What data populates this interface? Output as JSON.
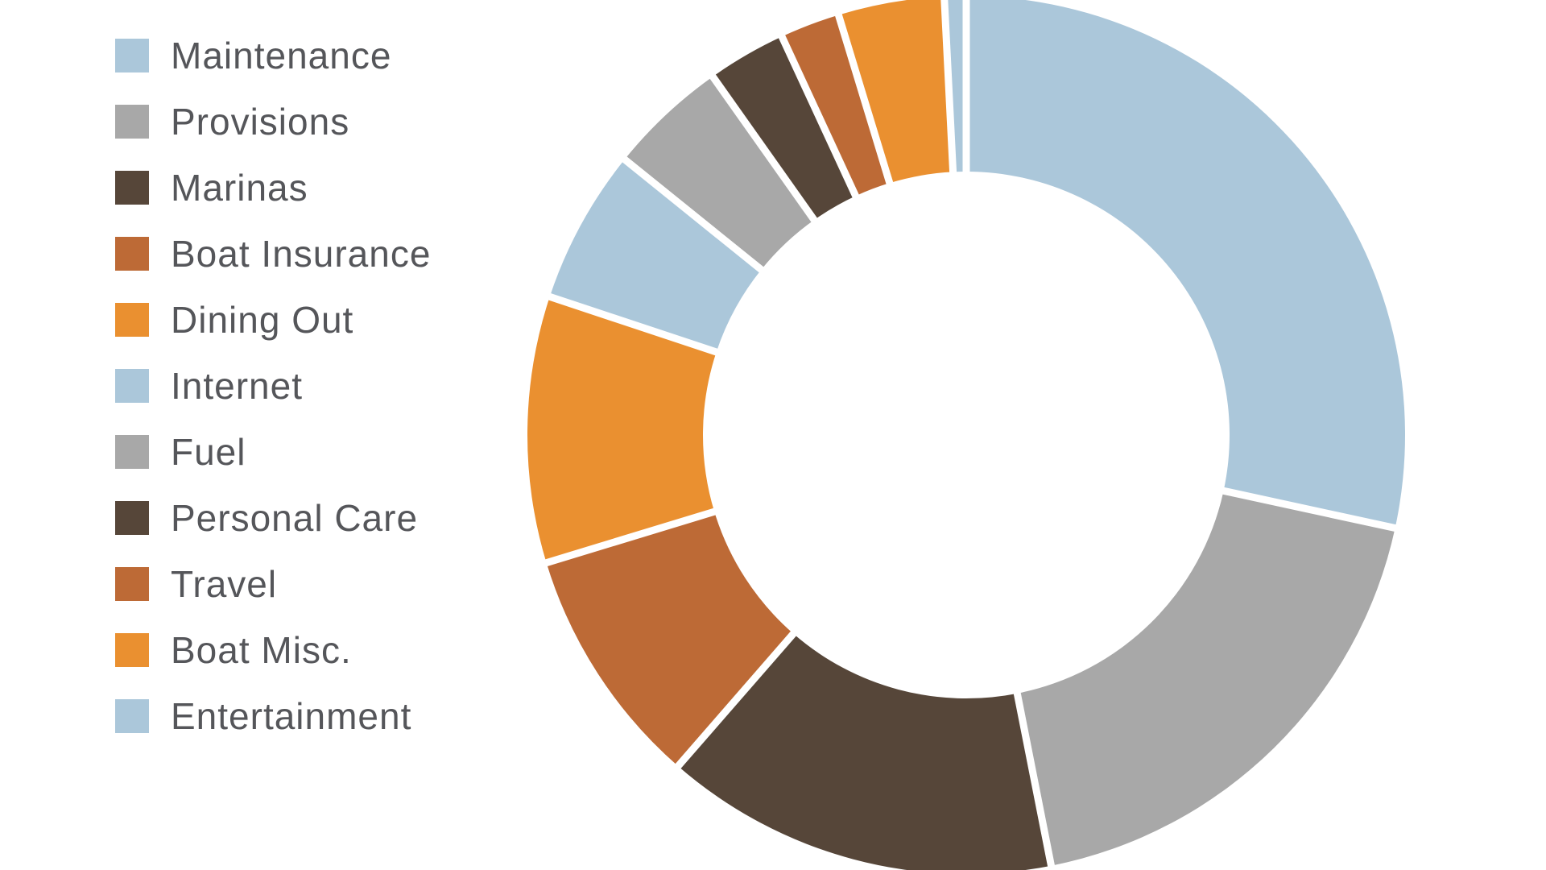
{
  "page": {
    "background_color": "#ffffff"
  },
  "chart_data": {
    "type": "pie",
    "subtype": "donut",
    "title": "",
    "categories": [
      "Maintenance",
      "Provisions",
      "Marinas",
      "Boat Insurance",
      "Dining Out",
      "Internet",
      "Fuel",
      "Personal Care",
      "Travel",
      "Boat Misc.",
      "Entertainment"
    ],
    "values": [
      28.4,
      18.5,
      14.5,
      8.9,
      9.8,
      5.7,
      4.4,
      2.9,
      2.2,
      3.9,
      0.8
    ],
    "unit": "percent_of_total",
    "colors": [
      "#abc7da",
      "#a8a8a8",
      "#564639",
      "#bd6a36",
      "#ea9030",
      "#abc7da",
      "#a8a8a8",
      "#564639",
      "#bd6a36",
      "#ea9030",
      "#abc7da"
    ],
    "start_angle_deg": 0,
    "direction": "clockwise",
    "donut_hole_ratio": 0.6,
    "slice_separator_color": "#ffffff",
    "data_labels": "none",
    "legend_position": "left",
    "legend_text_color": "#55565a",
    "background_color": "#ffffff"
  }
}
